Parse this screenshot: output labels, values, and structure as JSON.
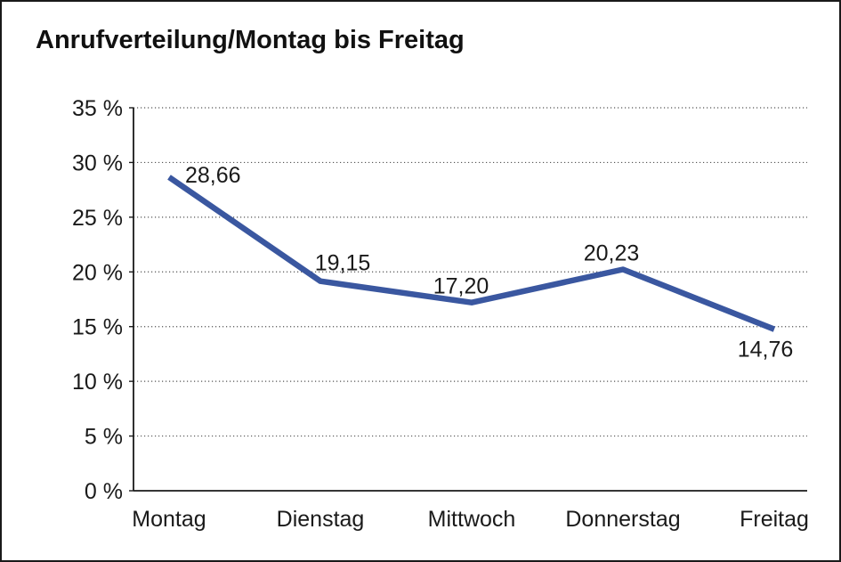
{
  "page": {
    "background_color": "#ffffff",
    "border_color": "#1a1a1a"
  },
  "chart_data": {
    "type": "line",
    "title": "Anrufverteilung/Montag bis Freitag",
    "categories": [
      "Montag",
      "Dienstag",
      "Mittwoch",
      "Donnerstag",
      "Freitag"
    ],
    "series": [
      {
        "values": [
          28.66,
          19.15,
          17.2,
          20.23,
          14.76
        ],
        "point_labels": [
          "28,66",
          "19,15",
          "17,20",
          "20,23",
          "14,76"
        ],
        "color": "#3A57A0"
      }
    ],
    "xlabel": "",
    "ylabel": "",
    "ylim": [
      0,
      35
    ],
    "y_tick_step": 5,
    "y_tick_labels": [
      "0 %",
      "5 %",
      "10 %",
      "15 %",
      "20 %",
      "25 %",
      "30 %",
      "35 %"
    ],
    "grid": "horizontal-dotted",
    "legend": "none",
    "axis_color": "#1a1a1a",
    "gridline_color": "#555555",
    "text_color": "#1a1a1a"
  }
}
